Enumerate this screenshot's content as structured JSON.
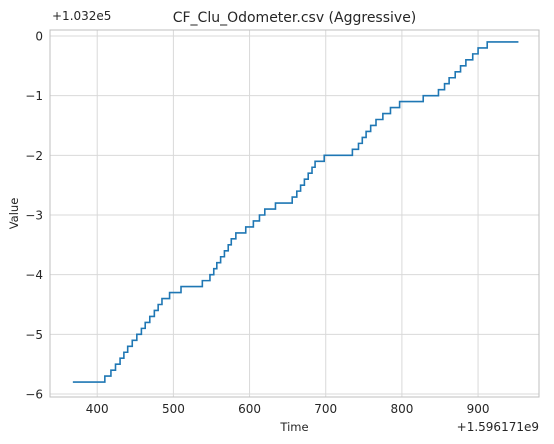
{
  "chart_data": {
    "type": "line",
    "title": "CF_Clu_Odometer.csv (Aggressive)",
    "xlabel": "Time",
    "ylabel": "Value",
    "x_offset_text": "+1.596171e9",
    "y_offset_text": "+1.032e5",
    "xlim": [
      338,
      980
    ],
    "ylim": [
      -6.05,
      0.1
    ],
    "x_ticks": [
      400,
      500,
      600,
      700,
      800,
      900
    ],
    "y_ticks": [
      0,
      -1,
      -2,
      -3,
      -4,
      -5,
      -6
    ],
    "x_tick_labels": [
      "400",
      "500",
      "600",
      "700",
      "800",
      "900"
    ],
    "y_tick_labels": [
      "0",
      "−1",
      "−2",
      "−3",
      "−4",
      "−5",
      "−6"
    ],
    "grid": true,
    "series": [
      {
        "name": "Value",
        "color": "#1f77b4",
        "step": "post",
        "x": [
          368,
          410,
          418,
          424,
          430,
          435,
          440,
          446,
          452,
          458,
          463,
          469,
          475,
          480,
          485,
          489,
          495,
          510,
          520,
          538,
          548,
          553,
          557,
          562,
          567,
          572,
          576,
          582,
          595,
          605,
          613,
          620,
          634,
          656,
          662,
          667,
          672,
          677,
          682,
          686,
          692,
          698,
          735,
          743,
          748,
          753,
          759,
          766,
          775,
          785,
          797,
          828,
          848,
          856,
          862,
          870,
          877,
          884,
          893,
          900,
          906,
          912,
          920,
          925,
          930,
          938,
          943,
          953
        ],
        "y": [
          -5.8,
          -5.7,
          -5.6,
          -5.5,
          -5.4,
          -5.3,
          -5.2,
          -5.1,
          -5.0,
          -4.9,
          -4.8,
          -4.7,
          -4.6,
          -4.5,
          -4.4,
          -4.4,
          -4.3,
          -4.2,
          -4.2,
          -4.1,
          -4.0,
          -3.9,
          -3.8,
          -3.7,
          -3.6,
          -3.5,
          -3.4,
          -3.3,
          -3.2,
          -3.1,
          -3.0,
          -2.9,
          -2.8,
          -2.7,
          -2.6,
          -2.5,
          -2.4,
          -2.3,
          -2.2,
          -2.1,
          -2.1,
          -2.0,
          -1.9,
          -1.8,
          -1.7,
          -1.6,
          -1.5,
          -1.4,
          -1.3,
          -1.2,
          -1.1,
          -1.0,
          -0.9,
          -0.8,
          -0.7,
          -0.6,
          -0.5,
          -0.4,
          -0.3,
          -0.2,
          -0.2,
          -0.1,
          -0.1,
          -0.1,
          -0.1,
          -0.1,
          -0.1,
          -0.1
        ]
      }
    ]
  }
}
